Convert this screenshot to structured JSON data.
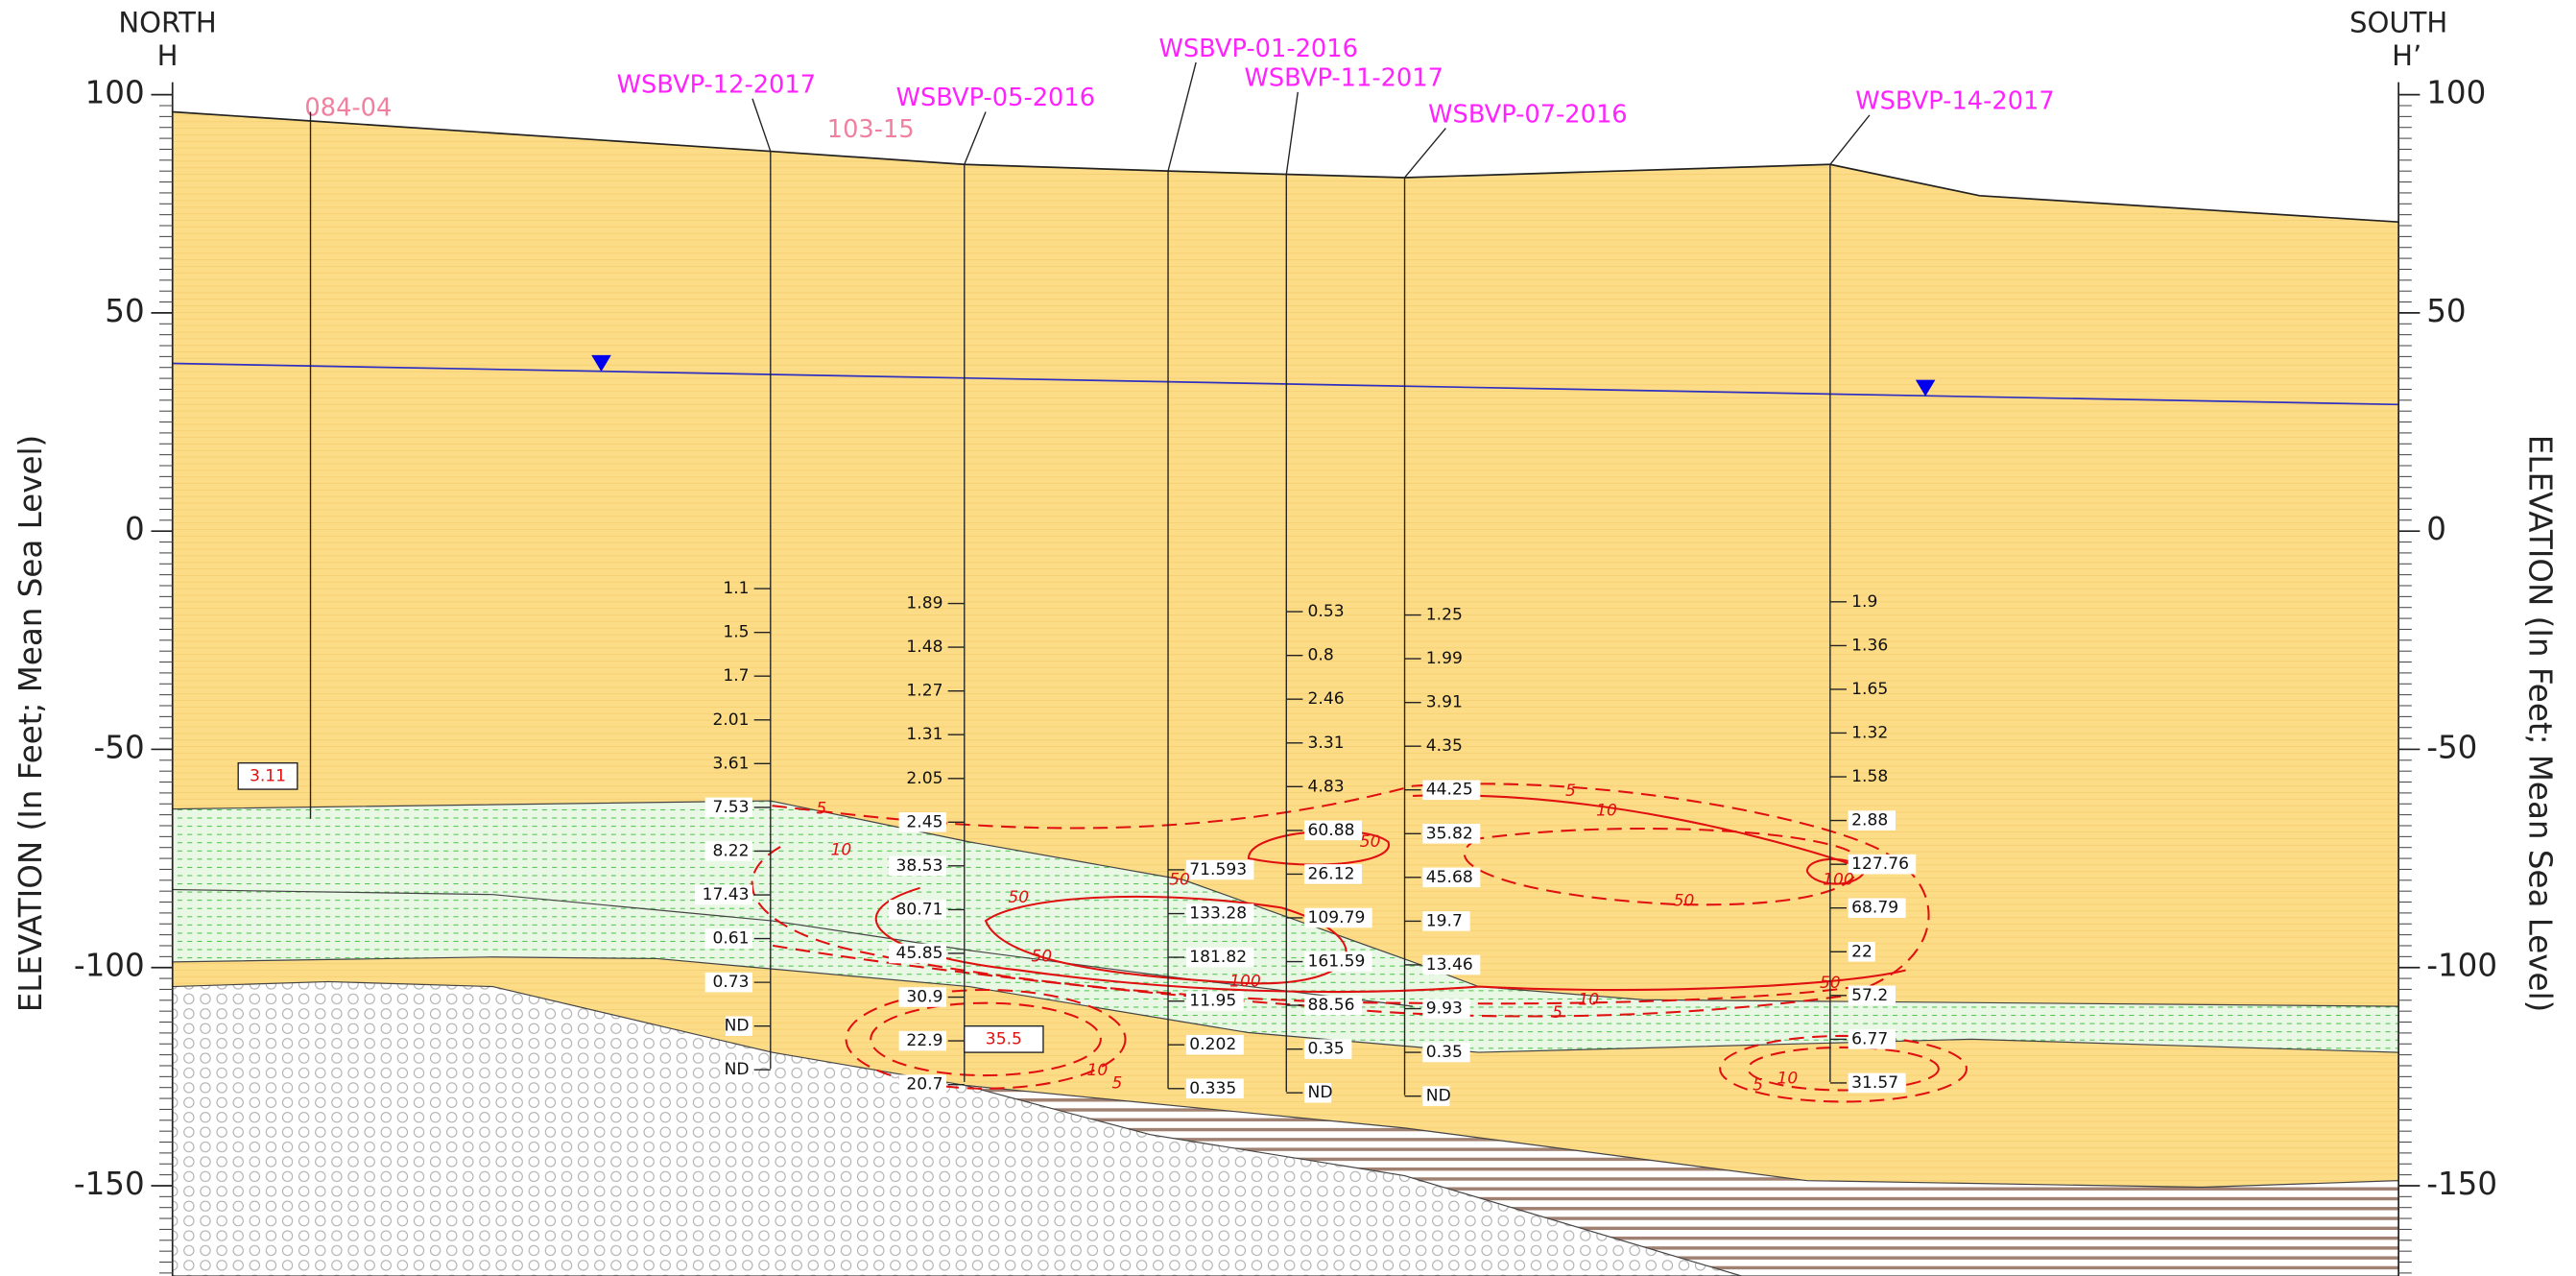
{
  "header": {
    "left": {
      "direction": "NORTH",
      "label": "H"
    },
    "right": {
      "direction": "SOUTH",
      "label": "H’"
    }
  },
  "axis": {
    "title": "ELEVATION (In Feet; Mean Sea Level)",
    "ticks": [
      100,
      50,
      0,
      -50,
      -100,
      -150
    ]
  },
  "wells": [
    {
      "name": "084-04",
      "result": "3.11",
      "samples": []
    },
    {
      "name": "WSBVP-12-2017",
      "samples": [
        "1.1",
        "1.5",
        "1.7",
        "2.01",
        "3.61",
        "7.53",
        "8.22",
        "17.43",
        "0.61",
        "0.73",
        "ND",
        "ND"
      ]
    },
    {
      "name": "103-15",
      "samples": []
    },
    {
      "name": "WSBVP-05-2016",
      "result": "35.5",
      "samples": [
        "1.89",
        "1.48",
        "1.27",
        "1.31",
        "2.05",
        "2.45",
        "38.53",
        "80.71",
        "45.85",
        "30.9",
        "22.9",
        "20.7"
      ]
    },
    {
      "name": "WSBVP-01-2016",
      "samples": [
        "71.593",
        "133.28",
        "181.82",
        "11.95",
        "0.202",
        "0.335"
      ]
    },
    {
      "name": "WSBVP-11-2017",
      "samples": [
        "0.53",
        "0.8",
        "2.46",
        "3.31",
        "4.83",
        "60.88",
        "26.12",
        "109.79",
        "161.59",
        "88.56",
        "0.35",
        "ND"
      ]
    },
    {
      "name": "WSBVP-07-2016",
      "samples": [
        "1.25",
        "1.99",
        "3.91",
        "4.35",
        "44.25",
        "35.82",
        "45.68",
        "19.7",
        "13.46",
        "9.93",
        "0.35",
        "ND"
      ]
    },
    {
      "name": "WSBVP-14-2017",
      "samples": [
        "1.9",
        "1.36",
        "1.65",
        "1.32",
        "1.58",
        "2.88",
        "127.76",
        "68.79",
        "22",
        "57.2",
        "6.77",
        "31.57"
      ]
    }
  ],
  "contour_labels": [
    "5",
    "10",
    "50",
    "50",
    "100",
    "10",
    "5",
    "50",
    "50",
    "5",
    "10",
    "100",
    "50",
    "10",
    "5",
    "50",
    "5",
    "10"
  ]
}
